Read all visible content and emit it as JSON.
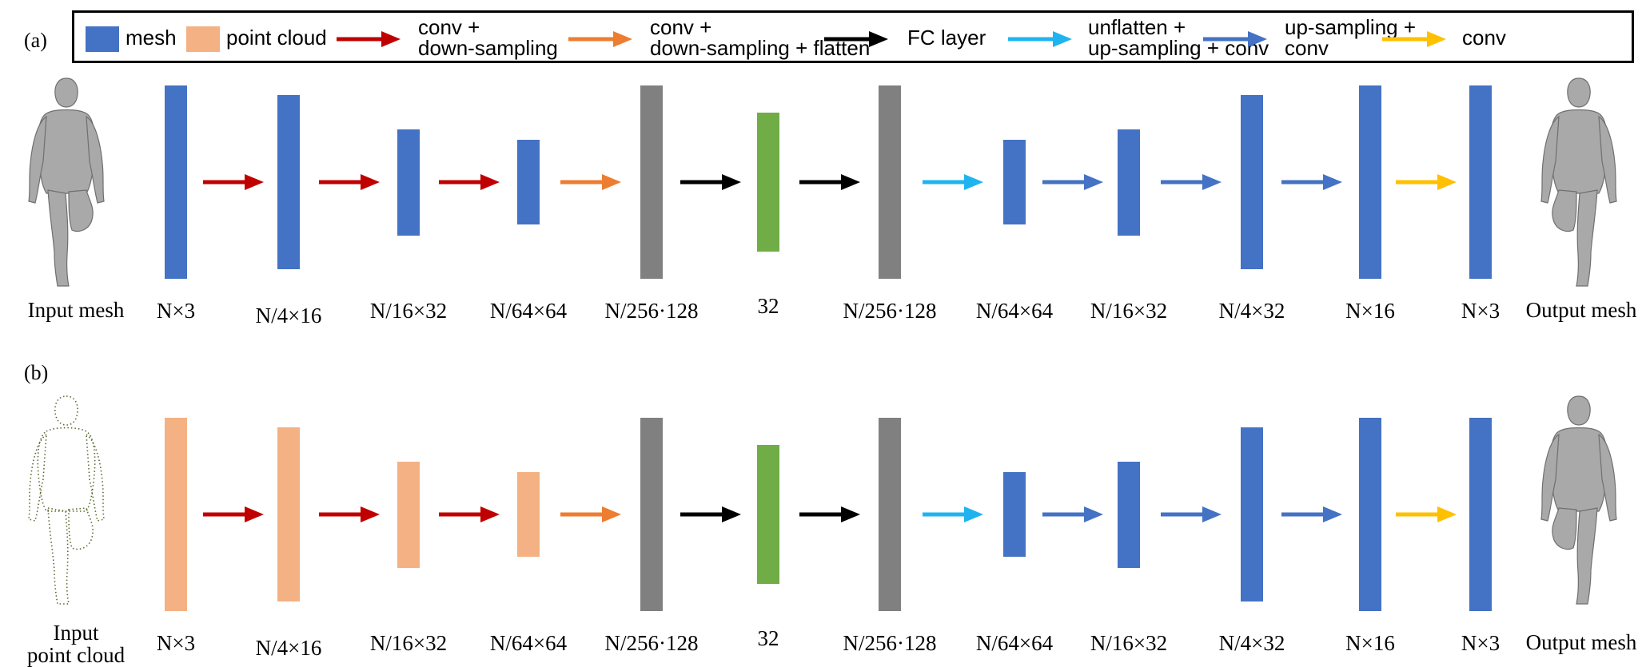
{
  "legend": {
    "items": [
      {
        "kind": "swatch",
        "color": "#4472c4",
        "label": "mesh"
      },
      {
        "kind": "swatch",
        "color": "#f4b183",
        "label": "point cloud"
      },
      {
        "kind": "arrow",
        "color": "#c00000",
        "label": "conv +\ndown-sampling"
      },
      {
        "kind": "arrow",
        "color": "#ed7d31",
        "label": "conv +\ndown-sampling + flatten"
      },
      {
        "kind": "arrow",
        "color": "#000000",
        "label": "FC layer"
      },
      {
        "kind": "arrow",
        "color": "#1fb4f0",
        "label": "unflatten +\nup-sampling + conv"
      },
      {
        "kind": "arrow",
        "color": "#4472c4",
        "label": "up-sampling +\nconv"
      },
      {
        "kind": "arrow",
        "color": "#ffc000",
        "label": "conv"
      }
    ]
  },
  "panels": [
    {
      "label": "(a)",
      "input_label": "Input mesh",
      "output_label": "Output mesh",
      "input_figure": "human-mesh-icon",
      "output_figure": "human-mesh-icon",
      "blocks": [
        {
          "label": "N×3",
          "color": "#4472c4",
          "size": 1.0
        },
        {
          "label": "N/4×16",
          "color": "#4472c4",
          "size": 0.9
        },
        {
          "label": "N/16×32",
          "color": "#4472c4",
          "size": 0.55
        },
        {
          "label": "N/64×64",
          "color": "#4472c4",
          "size": 0.44
        },
        {
          "label": "N/256·128",
          "color": "#808080",
          "size": 1.0
        },
        {
          "label": "32",
          "color": "#70ad47",
          "size": 0.72
        },
        {
          "label": "N/256·128",
          "color": "#808080",
          "size": 1.0
        },
        {
          "label": "N/64×64",
          "color": "#4472c4",
          "size": 0.44
        },
        {
          "label": "N/16×32",
          "color": "#4472c4",
          "size": 0.55
        },
        {
          "label": "N/4×32",
          "color": "#4472c4",
          "size": 0.9
        },
        {
          "label": "N×16",
          "color": "#4472c4",
          "size": 1.0
        },
        {
          "label": "N×3",
          "color": "#4472c4",
          "size": 1.0
        }
      ],
      "arrows": [
        "#c00000",
        "#c00000",
        "#c00000",
        "#ed7d31",
        "#000000",
        "#000000",
        "#1fb4f0",
        "#4472c4",
        "#4472c4",
        "#4472c4",
        "#ffc000"
      ]
    },
    {
      "label": "(b)",
      "input_label": "Input\npoint cloud",
      "output_label": "Output mesh",
      "input_figure": "human-point-cloud-icon",
      "output_figure": "human-mesh-icon",
      "blocks": [
        {
          "label": "N×3",
          "color": "#f4b183",
          "size": 1.0
        },
        {
          "label": "N/4×16",
          "color": "#f4b183",
          "size": 0.9
        },
        {
          "label": "N/16×32",
          "color": "#f4b183",
          "size": 0.55
        },
        {
          "label": "N/64×64",
          "color": "#f4b183",
          "size": 0.44
        },
        {
          "label": "N/256·128",
          "color": "#808080",
          "size": 1.0
        },
        {
          "label": "32",
          "color": "#70ad47",
          "size": 0.72
        },
        {
          "label": "N/256·128",
          "color": "#808080",
          "size": 1.0
        },
        {
          "label": "N/64×64",
          "color": "#4472c4",
          "size": 0.44
        },
        {
          "label": "N/16×32",
          "color": "#4472c4",
          "size": 0.55
        },
        {
          "label": "N/4×32",
          "color": "#4472c4",
          "size": 0.9
        },
        {
          "label": "N×16",
          "color": "#4472c4",
          "size": 1.0
        },
        {
          "label": "N×3",
          "color": "#4472c4",
          "size": 1.0
        }
      ],
      "arrows": [
        "#c00000",
        "#c00000",
        "#c00000",
        "#ed7d31",
        "#000000",
        "#000000",
        "#1fb4f0",
        "#4472c4",
        "#4472c4",
        "#4472c4",
        "#ffc000"
      ]
    }
  ]
}
